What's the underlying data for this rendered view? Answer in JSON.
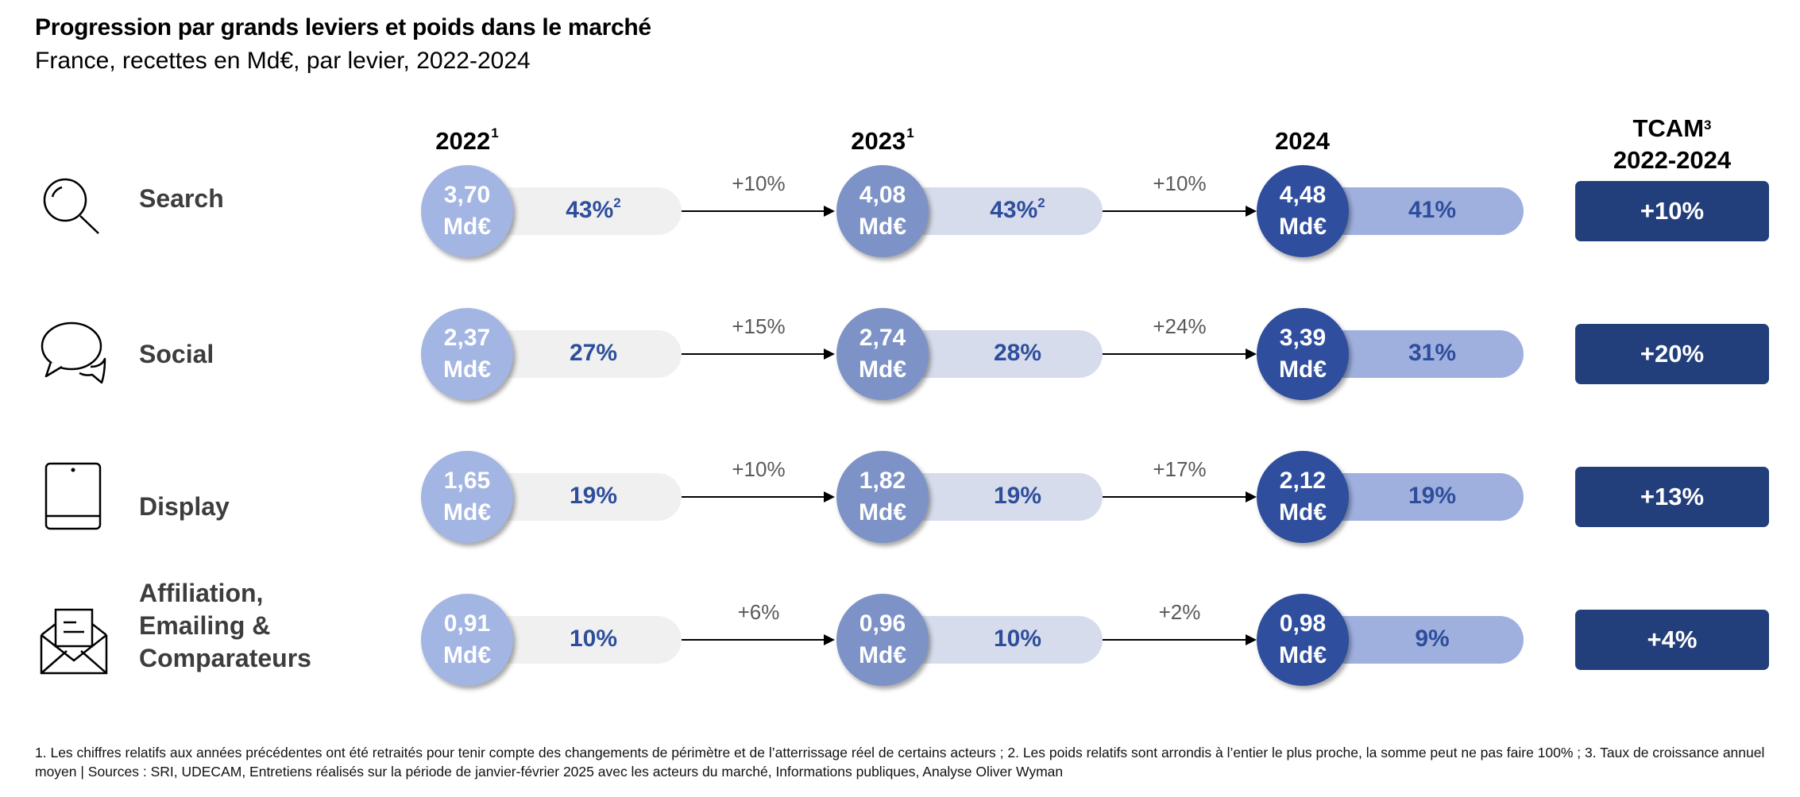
{
  "title": "Progression par grands leviers et poids dans le marché",
  "subtitle": "France, recettes en Md€, par levier, 2022-2024",
  "years": [
    {
      "label": "2022",
      "sup": "1"
    },
    {
      "label": "2023",
      "sup": "1"
    },
    {
      "label": "2024",
      "sup": ""
    }
  ],
  "tcam_header": {
    "line1": "TCAM",
    "sup": "3",
    "line2": "2022-2024"
  },
  "chart_data": {
    "type": "table",
    "unit": "Md€",
    "years": [
      "2022",
      "2023",
      "2024"
    ],
    "rows": [
      {
        "lever": "Search",
        "icon": "search-icon",
        "values": [
          "3,70",
          "4,08",
          "4,48"
        ],
        "unit": "Md€",
        "shares": [
          "43%",
          "43%",
          "41%"
        ],
        "share_sups": [
          "2",
          "2",
          ""
        ],
        "growth": [
          "+10%",
          "+10%"
        ],
        "tcam": "+10%"
      },
      {
        "lever": "Social",
        "icon": "chat-bubbles-icon",
        "values": [
          "2,37",
          "2,74",
          "3,39"
        ],
        "unit": "Md€",
        "shares": [
          "27%",
          "28%",
          "31%"
        ],
        "share_sups": [
          "",
          "",
          ""
        ],
        "growth": [
          "+15%",
          "+24%"
        ],
        "tcam": "+20%"
      },
      {
        "lever": "Display",
        "icon": "tablet-icon",
        "values": [
          "1,65",
          "1,82",
          "2,12"
        ],
        "unit": "Md€",
        "shares": [
          "19%",
          "19%",
          "19%"
        ],
        "share_sups": [
          "",
          "",
          ""
        ],
        "growth": [
          "+10%",
          "+17%"
        ],
        "tcam": "+13%"
      },
      {
        "lever": "Affiliation, Emailing & Comparateurs",
        "lever_lines": [
          "Affiliation,",
          "Emailing &",
          "Comparateurs"
        ],
        "icon": "open-envelope-icon",
        "values": [
          "0,91",
          "0,96",
          "0,98"
        ],
        "unit": "Md€",
        "shares": [
          "10%",
          "10%",
          "9%"
        ],
        "share_sups": [
          "",
          "",
          ""
        ],
        "growth": [
          "+6%",
          "+2%"
        ],
        "tcam": "+4%"
      }
    ]
  },
  "colors": {
    "circle_2022": "#a3b5e3",
    "circle_2023": "#7d93c7",
    "circle_2024": "#2f4e9e",
    "pill_2022": "#f0f0f0",
    "pill_2023": "#d6dceb",
    "pill_2024": "#9fb0df",
    "tcam_box": "#233f7b",
    "share_text": "#2e4e9c"
  },
  "footnote": "1. Les chiffres relatifs aux années précédentes ont été retraités pour tenir compte des changements de périmètre et de l’atterrissage réel de certains acteurs ; 2. Les poids relatifs sont arrondis à l’entier le plus proche, la somme peut ne pas faire 100% ; 3. Taux de croissance annuel moyen | Sources : SRI, UDECAM, Entretiens réalisés sur la période de janvier-février 2025 avec les acteurs du marché, Informations publiques, Analyse Oliver Wyman"
}
